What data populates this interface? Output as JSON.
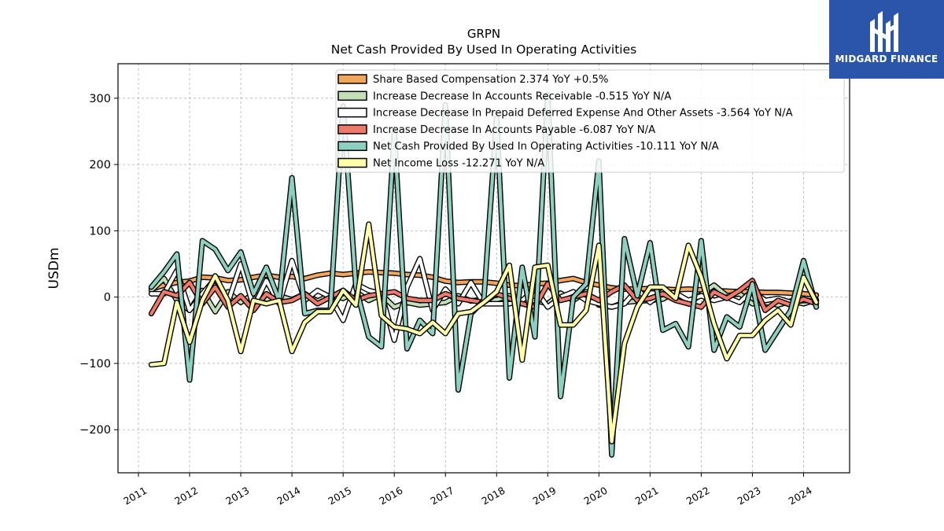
{
  "brand": {
    "name": "MIDGARD FINANCE",
    "logo_icon": "midgard-m-icon",
    "background": "#2a55a8"
  },
  "chart_data": {
    "type": "line",
    "title": "GRPN",
    "subtitle": "Net Cash Provided By Used In Operating Activities",
    "ylabel": "USDm",
    "xlabel": "",
    "xlim": [
      2010.6,
      2024.9
    ],
    "ylim": [
      -265,
      352
    ],
    "yticks": [
      -200,
      -100,
      0,
      100,
      200,
      300
    ],
    "xticks": [
      "2011",
      "2012",
      "2013",
      "2014",
      "2015",
      "2016",
      "2017",
      "2018",
      "2019",
      "2020",
      "2021",
      "2022",
      "2023",
      "2024"
    ],
    "grid": true,
    "legend_position": "top-right",
    "series": [
      {
        "name": "Share Based Compensation",
        "legend_label": "Share Based Compensation  2.374 YoY +0.5%",
        "color": "#f4a55c",
        "x": [
          2011.25,
          2011.5,
          2011.75,
          2012,
          2012.25,
          2012.5,
          2012.75,
          2013,
          2013.25,
          2013.5,
          2013.75,
          2014,
          2014.25,
          2014.5,
          2014.75,
          2015,
          2015.25,
          2015.5,
          2015.75,
          2016,
          2016.25,
          2016.5,
          2016.75,
          2017,
          2017.25,
          2017.5,
          2017.75,
          2018,
          2018.25,
          2018.5,
          2018.75,
          2019,
          2019.25,
          2019.5,
          2019.75,
          2020,
          2020.25,
          2020.5,
          2020.75,
          2021,
          2021.25,
          2021.5,
          2021.75,
          2022,
          2022.25,
          2022.5,
          2022.75,
          2023,
          2023.25,
          2023.5,
          2023.75,
          2024,
          2024.25
        ],
        "values": [
          12,
          18,
          22,
          24,
          30,
          29,
          25,
          26,
          30,
          33,
          30,
          31,
          28,
          33,
          36,
          34,
          36,
          38,
          37,
          36,
          34,
          33,
          30,
          24,
          22,
          23,
          23,
          21,
          18,
          17,
          20,
          21,
          25,
          28,
          22,
          18,
          14,
          12,
          12,
          13,
          12,
          11,
          12,
          11,
          10,
          9,
          8,
          8,
          7,
          7,
          6,
          5,
          3
        ]
      },
      {
        "name": "Increase Decrease In Accounts Receivable",
        "legend_label": "Increase Decrease In Accounts Receivable  -0.515 YoY N/A",
        "color": "#c2e0b8",
        "x": [
          2011.25,
          2011.5,
          2011.75,
          2012,
          2012.25,
          2012.5,
          2012.75,
          2013,
          2013.25,
          2013.5,
          2013.75,
          2014,
          2014.25,
          2014.5,
          2014.75,
          2015,
          2015.25,
          2015.5,
          2015.75,
          2016,
          2016.25,
          2016.5,
          2016.75,
          2017,
          2017.25,
          2017.5,
          2017.75,
          2018,
          2018.25,
          2018.5,
          2018.75,
          2019,
          2019.25,
          2019.5,
          2019.75,
          2020,
          2020.25,
          2020.5,
          2020.75,
          2021,
          2021.25,
          2021.5,
          2021.75,
          2022,
          2022.25,
          2022.5,
          2022.75,
          2023,
          2023.25,
          2023.5,
          2023.75,
          2024,
          2024.25
        ],
        "values": [
          10,
          28,
          -5,
          -20,
          10,
          -22,
          8,
          -8,
          5,
          -3,
          2,
          -4,
          5,
          -6,
          3,
          -2,
          8,
          -5,
          4,
          -15,
          -8,
          -12,
          -10,
          -8,
          2,
          -6,
          -3,
          -4,
          2,
          -8,
          -5,
          -10,
          6,
          -5,
          8,
          -12,
          -15,
          -8,
          -6,
          -5,
          -3,
          8,
          -10,
          4,
          18,
          2,
          5,
          -10,
          -8,
          -12,
          -6,
          -10,
          -4
        ]
      },
      {
        "name": "Increase Decrease In Prepaid Deferred Expense And Other Assets",
        "legend_label": "Increase Decrease In Prepaid Deferred Expense And Other Assets  -3.564 YoY N/A",
        "color": "#ffffff",
        "x": [
          2011.25,
          2011.5,
          2011.75,
          2012,
          2012.25,
          2012.5,
          2012.75,
          2013,
          2013.25,
          2013.5,
          2013.75,
          2014,
          2014.25,
          2014.5,
          2014.75,
          2015,
          2015.25,
          2015.5,
          2015.75,
          2016,
          2016.25,
          2016.5,
          2016.75,
          2017,
          2017.25,
          2017.5,
          2017.75,
          2018,
          2018.25,
          2018.5,
          2018.75,
          2019,
          2019.25,
          2019.5,
          2019.75,
          2020,
          2020.25,
          2020.5,
          2020.75,
          2021,
          2021.25,
          2021.5,
          2021.75,
          2022,
          2022.25,
          2022.5,
          2022.75,
          2023,
          2023.25,
          2023.5,
          2023.75,
          2024,
          2024.25
        ],
        "values": [
          5,
          5,
          40,
          -20,
          5,
          28,
          -8,
          50,
          -15,
          25,
          -10,
          55,
          -5,
          10,
          0,
          -35,
          20,
          10,
          5,
          -65,
          15,
          58,
          -20,
          12,
          -10,
          22,
          -10,
          -10,
          -10,
          -5,
          12,
          -15,
          0,
          8,
          -5,
          -10,
          -15,
          -10,
          12,
          -8,
          8,
          6,
          -5,
          2,
          -5,
          0,
          -8,
          10,
          -5,
          -2,
          -8,
          -5,
          -6
        ]
      },
      {
        "name": "Increase Decrease In Accounts Payable",
        "legend_label": "Increase Decrease In Accounts Payable  -6.087 YoY N/A",
        "color": "#f07a6a",
        "x": [
          2011.25,
          2011.5,
          2011.75,
          2012,
          2012.25,
          2012.5,
          2012.75,
          2013,
          2013.25,
          2013.5,
          2013.75,
          2014,
          2014.25,
          2014.5,
          2014.75,
          2015,
          2015.25,
          2015.5,
          2015.75,
          2016,
          2016.25,
          2016.5,
          2016.75,
          2017,
          2017.25,
          2017.5,
          2017.75,
          2018,
          2018.25,
          2018.5,
          2018.75,
          2019,
          2019.25,
          2019.5,
          2019.75,
          2020,
          2020.25,
          2020.5,
          2020.75,
          2021,
          2021.25,
          2021.5,
          2021.75,
          2022,
          2022.25,
          2022.5,
          2022.75,
          2023,
          2023.25,
          2023.5,
          2023.75,
          2024,
          2024.25
        ],
        "values": [
          -25,
          8,
          2,
          22,
          -10,
          15,
          -15,
          2,
          -20,
          5,
          -8,
          -5,
          5,
          -10,
          0,
          10,
          -5,
          2,
          5,
          8,
          -2,
          -5,
          -5,
          5,
          -2,
          -5,
          -8,
          5,
          -2,
          -10,
          -15,
          20,
          -5,
          0,
          5,
          -5,
          8,
          18,
          -5,
          -2,
          5,
          -5,
          -10,
          -15,
          8,
          -2,
          10,
          25,
          -20,
          -5,
          -12,
          -3,
          -10
        ]
      },
      {
        "name": "Net Cash Provided By Used In Operating Activities",
        "legend_label": "Net Cash Provided By Used In Operating Activities  -10.111 YoY N/A",
        "color": "#8ed0bf",
        "x": [
          2011.25,
          2011.5,
          2011.75,
          2012,
          2012.25,
          2012.5,
          2012.75,
          2013,
          2013.25,
          2013.5,
          2013.75,
          2014,
          2014.25,
          2014.5,
          2014.75,
          2015,
          2015.25,
          2015.5,
          2015.75,
          2016,
          2016.25,
          2016.5,
          2016.75,
          2017,
          2017.25,
          2017.5,
          2017.75,
          2018,
          2018.25,
          2018.5,
          2018.75,
          2019,
          2019.25,
          2019.5,
          2019.75,
          2020,
          2020.25,
          2020.5,
          2020.75,
          2021,
          2021.25,
          2021.5,
          2021.75,
          2022,
          2022.25,
          2022.5,
          2022.75,
          2023,
          2023.25,
          2023.5,
          2023.75,
          2024,
          2024.25
        ],
        "values": [
          15,
          38,
          65,
          -125,
          85,
          72,
          40,
          68,
          5,
          45,
          -5,
          180,
          -25,
          -20,
          -20,
          288,
          15,
          -60,
          -75,
          248,
          -78,
          -35,
          -55,
          290,
          -140,
          -25,
          -5,
          270,
          -122,
          45,
          -60,
          305,
          -150,
          0,
          20,
          205,
          -238,
          88,
          2,
          82,
          -50,
          -40,
          -75,
          85,
          -80,
          -30,
          -45,
          20,
          -80,
          -50,
          -20,
          55,
          -15
        ]
      },
      {
        "name": "Net Income Loss",
        "legend_label": "Net Income Loss  -12.271 YoY N/A",
        "color": "#ffffaa",
        "x": [
          2011.25,
          2011.5,
          2011.75,
          2012,
          2012.25,
          2012.5,
          2012.75,
          2013,
          2013.25,
          2013.5,
          2013.75,
          2014,
          2014.25,
          2014.5,
          2014.75,
          2015,
          2015.25,
          2015.5,
          2015.75,
          2016,
          2016.25,
          2016.5,
          2016.75,
          2017,
          2017.25,
          2017.5,
          2017.75,
          2018,
          2018.25,
          2018.5,
          2018.75,
          2019,
          2019.25,
          2019.5,
          2019.75,
          2020,
          2020.25,
          2020.5,
          2020.75,
          2021,
          2021.25,
          2021.5,
          2021.75,
          2022,
          2022.25,
          2022.5,
          2022.75,
          2023,
          2023.25,
          2023.5,
          2023.75,
          2024,
          2024.25
        ],
        "values": [
          -102,
          -100,
          -8,
          -68,
          -5,
          32,
          -5,
          -82,
          -5,
          -10,
          -5,
          -82,
          -38,
          -22,
          -22,
          10,
          -12,
          110,
          -28,
          -45,
          -48,
          -55,
          -38,
          -55,
          -25,
          -22,
          -8,
          8,
          48,
          -95,
          45,
          48,
          -42,
          -42,
          -20,
          78,
          -218,
          -70,
          -15,
          15,
          15,
          -2,
          78,
          30,
          -40,
          -93,
          -58,
          -58,
          -35,
          -20,
          -42,
          30,
          -8
        ]
      }
    ]
  }
}
